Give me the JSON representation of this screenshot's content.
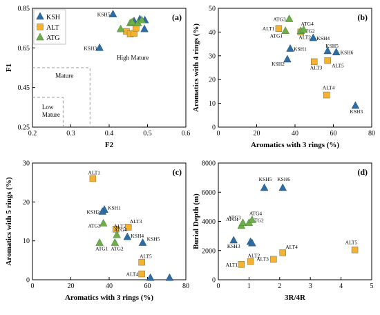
{
  "chart_data": [
    {
      "panel": "(a)",
      "type": "scatter",
      "xlabel": "F2",
      "ylabel": "F1",
      "xlim": [
        0.2,
        0.6
      ],
      "ylim": [
        0.25,
        0.85
      ],
      "xticks": [
        "0.2",
        "0.3",
        "0.4",
        "0.5",
        "0.6"
      ],
      "yticks": [
        "0.25",
        "0.45",
        "0.65",
        "0.85"
      ],
      "xtick_values": [
        0.2,
        0.3,
        0.4,
        0.5,
        0.6
      ],
      "ytick_values": [
        0.25,
        0.45,
        0.65,
        0.85
      ],
      "grid": false,
      "legend": {
        "placement": "top-left",
        "entries": [
          "KSH",
          "ALT",
          "ATG"
        ]
      },
      "regions": [
        {
          "label": "High Mature",
          "x": 0.42,
          "y": 0.59
        },
        {
          "label": "Mature",
          "x": 0.26,
          "y": 0.5
        },
        {
          "label": "Low Mature",
          "lines": [
            "Low",
            "Mature"
          ],
          "x": 0.225,
          "y": 0.34
        }
      ],
      "region_boundaries": [
        {
          "x": [
            0.2,
            0.35,
            0.35
          ],
          "y": [
            0.55,
            0.55,
            0.25
          ]
        },
        {
          "x": [
            0.2,
            0.28,
            0.28
          ],
          "y": [
            0.4,
            0.4,
            0.25
          ]
        }
      ],
      "series": [
        {
          "name": "KSH",
          "points": [
            {
              "x": 0.41,
              "y": 0.82,
              "label": "KSH5"
            },
            {
              "x": 0.375,
              "y": 0.65,
              "label": "KSH3"
            },
            {
              "x": 0.48,
              "y": 0.795
            },
            {
              "x": 0.493,
              "y": 0.79
            },
            {
              "x": 0.465,
              "y": 0.785
            },
            {
              "x": 0.492,
              "y": 0.745
            }
          ]
        },
        {
          "name": "ALT",
          "points": [
            {
              "x": 0.445,
              "y": 0.733
            },
            {
              "x": 0.455,
              "y": 0.72
            },
            {
              "x": 0.465,
              "y": 0.723
            },
            {
              "x": 0.47,
              "y": 0.75
            }
          ]
        },
        {
          "name": "ATG",
          "points": [
            {
              "x": 0.43,
              "y": 0.745
            },
            {
              "x": 0.455,
              "y": 0.775
            },
            {
              "x": 0.46,
              "y": 0.78
            },
            {
              "x": 0.475,
              "y": 0.775
            },
            {
              "x": 0.485,
              "y": 0.79
            }
          ]
        }
      ]
    },
    {
      "panel": "(b)",
      "type": "scatter",
      "xlabel": "Aromatics with 3 rings (%)",
      "ylabel": "Aromatics with 4 rings (%)",
      "xlim": [
        0,
        80
      ],
      "ylim": [
        0,
        50
      ],
      "xticks": [
        "0",
        "20",
        "40",
        "60",
        "80"
      ],
      "yticks": [
        "0",
        "10",
        "20",
        "30",
        "40",
        "50"
      ],
      "xtick_values": [
        0,
        20,
        40,
        60,
        80
      ],
      "ytick_values": [
        0,
        10,
        20,
        30,
        40,
        50
      ],
      "grid": false,
      "series": [
        {
          "name": "KSH",
          "points": [
            {
              "x": 36,
              "y": 28.5,
              "label": "KSH2"
            },
            {
              "x": 37.5,
              "y": 33,
              "label": "KSH1"
            },
            {
              "x": 49.5,
              "y": 37.5,
              "label": "KSH4"
            },
            {
              "x": 57,
              "y": 32,
              "label": "KSH5"
            },
            {
              "x": 61.5,
              "y": 31.5,
              "label": "KSH6"
            },
            {
              "x": 71.5,
              "y": 9,
              "label": "KSH3"
            }
          ]
        },
        {
          "name": "ALT",
          "points": [
            {
              "x": 31.5,
              "y": 41.5,
              "label": "ALT1"
            },
            {
              "x": 43,
              "y": 40,
              "label": "ALT2"
            },
            {
              "x": 50,
              "y": 27.5,
              "label": "ALT3"
            },
            {
              "x": 56.5,
              "y": 13.5,
              "label": "ALT4"
            },
            {
              "x": 57,
              "y": 28,
              "label": "ALT5"
            }
          ]
        },
        {
          "name": "ATG",
          "points": [
            {
              "x": 37,
              "y": 45.5,
              "label": "ATG3"
            },
            {
              "x": 35,
              "y": 40.5,
              "label": "ATG1"
            },
            {
              "x": 43,
              "y": 40.5,
              "label": "ATG2"
            },
            {
              "x": 44.5,
              "y": 41,
              "label": "ATG4"
            }
          ]
        }
      ]
    },
    {
      "panel": "(c)",
      "type": "scatter",
      "xlabel": "Aromatics with 3 rings (%)",
      "ylabel": "Aromatics with 5 rings (%)",
      "xlim": [
        0,
        80
      ],
      "ylim": [
        0,
        30
      ],
      "xticks": [
        "0",
        "20",
        "40",
        "60",
        "80"
      ],
      "yticks": [
        "0",
        "10",
        "20",
        "30"
      ],
      "xtick_values": [
        0,
        20,
        40,
        60,
        80
      ],
      "ytick_values": [
        0,
        10,
        20,
        30
      ],
      "grid": false,
      "series": [
        {
          "name": "KSH",
          "points": [
            {
              "x": 37.5,
              "y": 18,
              "label": "KSH1"
            },
            {
              "x": 36.5,
              "y": 17.5,
              "label": "KSH2"
            },
            {
              "x": 49.5,
              "y": 11,
              "label": "KSH4"
            },
            {
              "x": 57.5,
              "y": 9.5,
              "label": "KSH5"
            },
            {
              "x": 61.5,
              "y": 0.5
            },
            {
              "x": 71.5,
              "y": 0.5
            }
          ]
        },
        {
          "name": "ALT",
          "points": [
            {
              "x": 31.5,
              "y": 26,
              "label": "ALT1"
            },
            {
              "x": 43.5,
              "y": 13,
              "label": "ALT2"
            },
            {
              "x": 50,
              "y": 13.5,
              "label": "ALT3"
            },
            {
              "x": 57,
              "y": 4.5,
              "label": "ALT5"
            },
            {
              "x": 57,
              "y": 1.5,
              "label": "ALT4"
            }
          ]
        },
        {
          "name": "ATG",
          "points": [
            {
              "x": 37,
              "y": 14.5,
              "label": "ATG3"
            },
            {
              "x": 44,
              "y": 11.5,
              "label": "ATG4"
            },
            {
              "x": 35,
              "y": 9.5,
              "label": "ATG1"
            },
            {
              "x": 43,
              "y": 9.5,
              "label": "ATG2"
            }
          ]
        }
      ]
    },
    {
      "panel": "(d)",
      "type": "scatter",
      "xlabel": "3R/4R",
      "ylabel": "Burial Depth  (m)",
      "xlim": [
        0,
        5
      ],
      "ylim": [
        0,
        8000
      ],
      "xticks": [
        "0",
        "1",
        "2",
        "3",
        "4",
        "5"
      ],
      "yticks": [
        "0",
        "2000",
        "4000",
        "6000",
        "8000"
      ],
      "xtick_values": [
        0,
        1,
        2,
        3,
        4,
        5
      ],
      "ytick_values": [
        0,
        2000,
        4000,
        6000,
        8000
      ],
      "grid": false,
      "series": [
        {
          "name": "KSH",
          "points": [
            {
              "x": 0.5,
              "y": 2700,
              "label": "KSH3"
            },
            {
              "x": 1.05,
              "y": 2600
            },
            {
              "x": 1.1,
              "y": 2500
            },
            {
              "x": 1.5,
              "y": 6300,
              "label": "KSH5"
            },
            {
              "x": 2.1,
              "y": 6300,
              "label": "KSH6"
            }
          ]
        },
        {
          "name": "ALT",
          "points": [
            {
              "x": 0.75,
              "y": 1050,
              "label": "ALT1"
            },
            {
              "x": 1.05,
              "y": 1250,
              "label": "ALT2"
            },
            {
              "x": 1.8,
              "y": 1400,
              "label": "ALT3"
            },
            {
              "x": 2.1,
              "y": 1850,
              "label": "ALT4"
            },
            {
              "x": 4.45,
              "y": 2050,
              "label": "ALT5"
            }
          ]
        },
        {
          "name": "ATG",
          "points": [
            {
              "x": 0.75,
              "y": 3700,
              "label": "ATG1"
            },
            {
              "x": 0.8,
              "y": 3900,
              "label": "ATG3"
            },
            {
              "x": 1.0,
              "y": 3900,
              "label": "ATG2"
            },
            {
              "x": 1.1,
              "y": 4100,
              "label": "ATG4"
            }
          ]
        }
      ]
    }
  ],
  "colors": {
    "KSH": "#2E6DA4",
    "ALT": "#F5B130",
    "ATG": "#6DAE4A",
    "axis": "#000000",
    "boundary": "#9a9a9a"
  },
  "marker_shapes": {
    "KSH": "triangle",
    "ALT": "square",
    "ATG": "triangle"
  }
}
